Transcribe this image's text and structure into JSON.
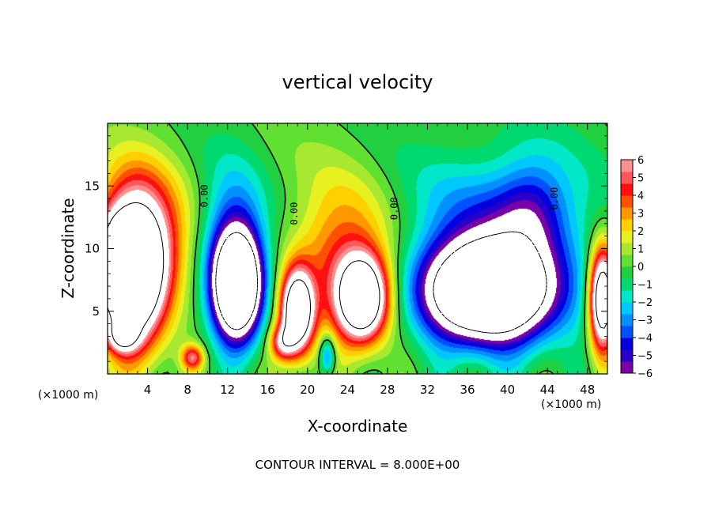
{
  "chart_data": {
    "type": "heatmap",
    "title": "vertical velocity",
    "xlabel": "X-coordinate",
    "ylabel": "Z-coordinate",
    "x_units_left": "(×1000 m)",
    "x_units_right": "(×1000 m)",
    "xlim": [
      0,
      50
    ],
    "ylim": [
      0,
      20
    ],
    "x_ticks": [
      4,
      8,
      12,
      16,
      20,
      24,
      28,
      32,
      36,
      40,
      44,
      48
    ],
    "y_ticks": [
      5,
      10,
      15
    ],
    "contour_interval_text": "CONTOUR INTERVAL = 8.000E+00",
    "contour_labels": [
      "0.00",
      "0.00",
      "0.00",
      "0.00"
    ],
    "colorbar": {
      "ticks": [
        "6",
        "5",
        "4",
        "3",
        "2",
        "1",
        "0",
        "−1",
        "−2",
        "−3",
        "−4",
        "−5",
        "−6"
      ],
      "range": [
        -6,
        6
      ],
      "colors": [
        "#7a00a8",
        "#2a00c8",
        "#0000e0",
        "#0050ff",
        "#0090ff",
        "#00c8ff",
        "#00e8c8",
        "#00d870",
        "#20d040",
        "#60e030",
        "#a8e830",
        "#e8f020",
        "#ffd000",
        "#ff9800",
        "#ff5000",
        "#ff1010",
        "#ff5858",
        "#ff9090"
      ]
    },
    "features": [
      {
        "kind": "updraft",
        "x": 2.5,
        "z": 8,
        "rx": 3.2,
        "rz": 5.5,
        "w": 14
      },
      {
        "kind": "updraft_halo",
        "x": 3.5,
        "z": 11,
        "rx": 4.5,
        "rz": 5.5,
        "w": 4
      },
      {
        "kind": "updraft",
        "x": 0.8,
        "z": 8.5,
        "rx": 1.2,
        "rz": 3,
        "w": 6
      },
      {
        "kind": "downdraft",
        "x": 13,
        "z": 7,
        "rx": 2.3,
        "rz": 4,
        "w": -14
      },
      {
        "kind": "downdraft_halo",
        "x": 12.5,
        "z": 10,
        "rx": 3.2,
        "rz": 6,
        "w": -4
      },
      {
        "kind": "updraft",
        "x": 19,
        "z": 5,
        "rx": 1.6,
        "rz": 3.2,
        "w": 12
      },
      {
        "kind": "updraft",
        "x": 25.5,
        "z": 6,
        "rx": 2.4,
        "rz": 3.2,
        "w": 12
      },
      {
        "kind": "updraft_halo",
        "x": 23.5,
        "z": 9,
        "rx": 5,
        "rz": 6,
        "w": 4
      },
      {
        "kind": "downdraft",
        "x": 38,
        "z": 6.5,
        "rx": 6,
        "rz": 3.6,
        "w": -14
      },
      {
        "kind": "downdraft_halo",
        "x": 39,
        "z": 10,
        "rx": 8,
        "rz": 7,
        "w": -4.5
      },
      {
        "kind": "downdraft",
        "x": 42.5,
        "z": 13,
        "rx": 3.5,
        "rz": 4,
        "w": -3
      },
      {
        "kind": "updraft",
        "x": 49.5,
        "z": 6,
        "rx": 1.3,
        "rz": 4,
        "w": 12
      },
      {
        "kind": "updraft",
        "x": 8.5,
        "z": 1.3,
        "rx": 1.1,
        "rz": 1.0,
        "w": 5
      },
      {
        "kind": "updraft",
        "x": 17.5,
        "z": 2.5,
        "rx": 1.3,
        "rz": 1.4,
        "w": 5
      },
      {
        "kind": "downdraft",
        "x": 22,
        "z": 1.5,
        "rx": 0.8,
        "rz": 1.6,
        "w": -4
      },
      {
        "kind": "updraft",
        "x": 1.5,
        "z": 3,
        "rx": 1.5,
        "rz": 1.2,
        "w": 5
      }
    ]
  }
}
